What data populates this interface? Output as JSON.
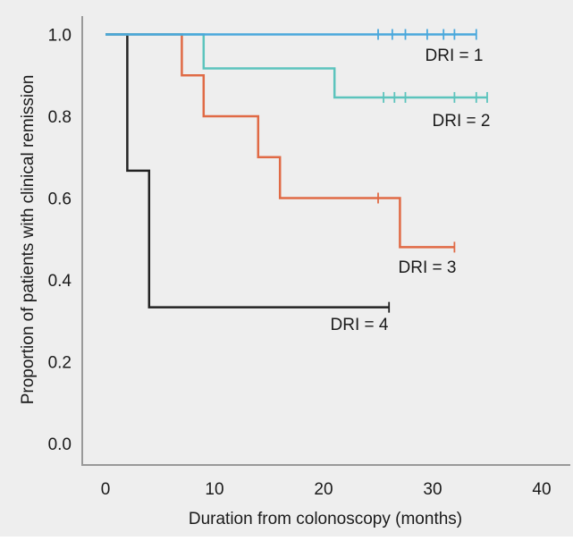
{
  "chart_data": {
    "type": "line",
    "subtype": "kaplan-meier step",
    "title": "",
    "xlabel": "Duration from colonoscopy (months)",
    "ylabel": "Proportion of patients with clinical remission",
    "xlim": [
      0,
      40
    ],
    "ylim": [
      0,
      1.0
    ],
    "x_ticks": [
      "0",
      "10",
      "20",
      "30",
      "40"
    ],
    "y_ticks": [
      "0.0",
      "0.2",
      "0.4",
      "0.6",
      "0.8",
      "1.0"
    ],
    "grid": false,
    "background_color": "#eeeeee",
    "series": [
      {
        "name": "DRI = 1",
        "color": "#4aa8dc",
        "steps": [
          [
            0,
            1.0
          ],
          [
            34,
            1.0
          ]
        ],
        "censored": [
          25,
          26.3,
          27.5,
          29.5,
          31,
          32,
          34
        ]
      },
      {
        "name": "DRI = 2",
        "color": "#5cc4bd",
        "steps": [
          [
            0,
            1.0
          ],
          [
            9,
            0.917
          ],
          [
            21,
            0.846
          ],
          [
            35,
            0.846
          ]
        ],
        "censored": [
          25.5,
          26.5,
          27.5,
          32,
          34,
          35
        ]
      },
      {
        "name": "DRI = 3",
        "color": "#e06a45",
        "steps": [
          [
            0,
            1.0
          ],
          [
            7,
            0.9
          ],
          [
            9,
            0.8
          ],
          [
            14,
            0.7
          ],
          [
            16,
            0.6
          ],
          [
            27,
            0.48
          ],
          [
            32,
            0.48
          ]
        ],
        "censored": [
          25,
          32
        ]
      },
      {
        "name": "DRI = 4",
        "color": "#222222",
        "steps": [
          [
            0,
            1.0
          ],
          [
            2,
            0.667
          ],
          [
            4,
            0.333
          ],
          [
            26,
            0.333
          ]
        ],
        "censored": [
          26
        ]
      }
    ],
    "annotations": [
      {
        "text": "DRI = 1",
        "series": 0
      },
      {
        "text": "DRI = 2",
        "series": 1
      },
      {
        "text": "DRI = 3",
        "series": 2
      },
      {
        "text": "DRI = 4",
        "series": 3
      }
    ]
  }
}
